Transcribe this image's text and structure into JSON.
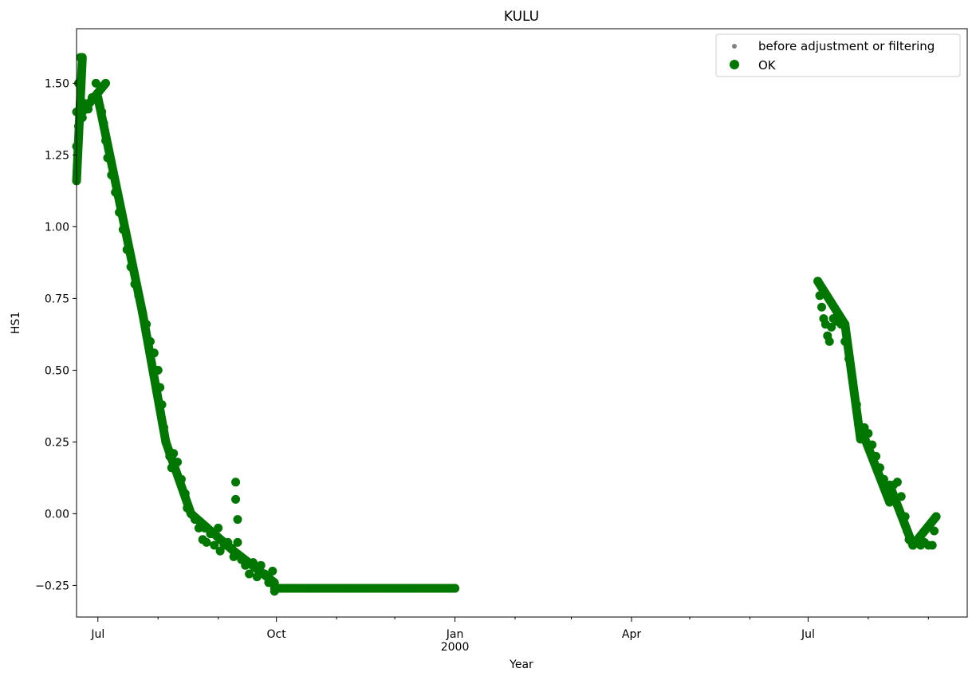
{
  "chart_data": {
    "type": "scatter",
    "title": "KULU",
    "xlabel": "Year",
    "ylabel": "HS1",
    "x_range": [
      "1999-06-20",
      "2000-09-21"
    ],
    "ylim": [
      -0.36,
      1.69
    ],
    "y_ticks": [
      -0.25,
      0.0,
      0.25,
      0.5,
      0.75,
      1.0,
      1.25,
      1.5
    ],
    "y_tick_labels": [
      "−0.25",
      "0.00",
      "0.25",
      "0.50",
      "0.75",
      "1.00",
      "1.25",
      "1.50"
    ],
    "x_major_ticks": [
      {
        "date": "1999-07-01",
        "label": "Jul",
        "sublabel": ""
      },
      {
        "date": "1999-10-01",
        "label": "Oct",
        "sublabel": ""
      },
      {
        "date": "2000-01-01",
        "label": "Jan",
        "sublabel": "2000"
      },
      {
        "date": "2000-04-01",
        "label": "Apr",
        "sublabel": ""
      },
      {
        "date": "2000-07-01",
        "label": "Jul",
        "sublabel": ""
      }
    ],
    "x_minor_ticks": [
      "1999-08-01",
      "1999-09-01",
      "1999-11-01",
      "1999-12-01",
      "2000-02-01",
      "2000-03-01",
      "2000-05-01",
      "2000-06-01",
      "2000-08-01",
      "2000-09-01"
    ],
    "grid": false,
    "legend_position": "top-right",
    "series": [
      {
        "name": "before adjustment or filtering",
        "color": "#808080",
        "marker": "small-dot",
        "points": []
      },
      {
        "name": "OK",
        "color": "#007700",
        "marker": "dot",
        "points": [
          [
            "1999-06-20",
            1.16
          ],
          [
            "1999-06-20",
            1.28
          ],
          [
            "1999-06-20",
            1.4
          ],
          [
            "1999-06-21",
            1.5
          ],
          [
            "1999-06-21",
            1.35
          ],
          [
            "1999-06-22",
            1.59
          ],
          [
            "1999-06-22",
            1.45
          ],
          [
            "1999-06-23",
            1.38
          ],
          [
            "1999-06-24",
            1.43
          ],
          [
            "1999-06-26",
            1.41
          ],
          [
            "1999-06-28",
            1.45
          ],
          [
            "1999-06-30",
            1.5
          ],
          [
            "1999-07-01",
            1.45
          ],
          [
            "1999-07-02",
            1.42
          ],
          [
            "1999-07-03",
            1.4
          ],
          [
            "1999-07-04",
            1.36
          ],
          [
            "1999-07-05",
            1.3
          ],
          [
            "1999-07-06",
            1.24
          ],
          [
            "1999-07-08",
            1.18
          ],
          [
            "1999-07-10",
            1.12
          ],
          [
            "1999-07-12",
            1.05
          ],
          [
            "1999-07-14",
            0.99
          ],
          [
            "1999-07-16",
            0.92
          ],
          [
            "1999-07-18",
            0.86
          ],
          [
            "1999-07-20",
            0.8
          ],
          [
            "1999-07-22",
            0.76
          ],
          [
            "1999-07-24",
            0.7
          ],
          [
            "1999-07-26",
            0.66
          ],
          [
            "1999-07-28",
            0.6
          ],
          [
            "1999-07-30",
            0.56
          ],
          [
            "1999-08-01",
            0.5
          ],
          [
            "1999-08-02",
            0.44
          ],
          [
            "1999-08-03",
            0.38
          ],
          [
            "1999-08-04",
            0.3
          ],
          [
            "1999-08-05",
            0.25
          ],
          [
            "1999-08-07",
            0.2
          ],
          [
            "1999-08-08",
            0.16
          ],
          [
            "1999-08-09",
            0.21
          ],
          [
            "1999-08-11",
            0.18
          ],
          [
            "1999-08-13",
            0.12
          ],
          [
            "1999-08-15",
            0.07
          ],
          [
            "1999-08-16",
            0.02
          ],
          [
            "1999-08-18",
            0.0
          ],
          [
            "1999-08-20",
            -0.02
          ],
          [
            "1999-08-22",
            -0.05
          ],
          [
            "1999-08-24",
            -0.09
          ],
          [
            "1999-08-25",
            -0.05
          ],
          [
            "1999-08-26",
            -0.1
          ],
          [
            "1999-08-28",
            -0.07
          ],
          [
            "1999-08-30",
            -0.11
          ],
          [
            "1999-09-01",
            -0.05
          ],
          [
            "1999-09-02",
            -0.13
          ],
          [
            "1999-09-04",
            -0.11
          ],
          [
            "1999-09-06",
            -0.1
          ],
          [
            "1999-09-08",
            -0.12
          ],
          [
            "1999-09-09",
            -0.15
          ],
          [
            "1999-09-10",
            0.11
          ],
          [
            "1999-09-10",
            0.05
          ],
          [
            "1999-09-11",
            -0.02
          ],
          [
            "1999-09-11",
            -0.1
          ],
          [
            "1999-09-13",
            -0.16
          ],
          [
            "1999-09-15",
            -0.18
          ],
          [
            "1999-09-17",
            -0.21
          ],
          [
            "1999-09-19",
            -0.17
          ],
          [
            "1999-09-21",
            -0.22
          ],
          [
            "1999-09-23",
            -0.18
          ],
          [
            "1999-09-25",
            -0.21
          ],
          [
            "1999-09-27",
            -0.24
          ],
          [
            "1999-09-29",
            -0.2
          ],
          [
            "1999-09-30",
            -0.27
          ],
          [
            "1999-10-01",
            -0.26
          ],
          [
            "1999-10-10",
            -0.26
          ],
          [
            "1999-10-20",
            -0.26
          ],
          [
            "1999-10-31",
            -0.26
          ],
          [
            "1999-11-10",
            -0.26
          ],
          [
            "1999-11-20",
            -0.26
          ],
          [
            "1999-11-30",
            -0.26
          ],
          [
            "1999-12-10",
            -0.26
          ],
          [
            "1999-12-20",
            -0.26
          ],
          [
            "2000-01-01",
            -0.26
          ],
          [
            "2000-07-06",
            0.81
          ],
          [
            "2000-07-07",
            0.76
          ],
          [
            "2000-07-08",
            0.72
          ],
          [
            "2000-07-09",
            0.68
          ],
          [
            "2000-07-10",
            0.66
          ],
          [
            "2000-07-11",
            0.62
          ],
          [
            "2000-07-12",
            0.6
          ],
          [
            "2000-07-13",
            0.65
          ],
          [
            "2000-07-14",
            0.68
          ],
          [
            "2000-07-16",
            0.67
          ],
          [
            "2000-07-18",
            0.66
          ],
          [
            "2000-07-20",
            0.6
          ],
          [
            "2000-07-22",
            0.54
          ],
          [
            "2000-07-24",
            0.46
          ],
          [
            "2000-07-26",
            0.38
          ],
          [
            "2000-07-27",
            0.31
          ],
          [
            "2000-07-28",
            0.26
          ],
          [
            "2000-07-30",
            0.3
          ],
          [
            "2000-08-01",
            0.28
          ],
          [
            "2000-08-03",
            0.24
          ],
          [
            "2000-08-05",
            0.2
          ],
          [
            "2000-08-07",
            0.16
          ],
          [
            "2000-08-09",
            0.12
          ],
          [
            "2000-08-11",
            0.06
          ],
          [
            "2000-08-12",
            0.04
          ],
          [
            "2000-08-14",
            0.1
          ],
          [
            "2000-08-16",
            0.11
          ],
          [
            "2000-08-18",
            0.06
          ],
          [
            "2000-08-20",
            -0.01
          ],
          [
            "2000-08-21",
            -0.06
          ],
          [
            "2000-08-22",
            -0.09
          ],
          [
            "2000-08-24",
            -0.11
          ],
          [
            "2000-08-26",
            -0.1
          ],
          [
            "2000-08-28",
            -0.11
          ],
          [
            "2000-08-30",
            -0.1
          ],
          [
            "2000-09-01",
            -0.11
          ],
          [
            "2000-09-03",
            -0.11
          ],
          [
            "2000-09-04",
            -0.06
          ],
          [
            "2000-09-05",
            -0.01
          ]
        ],
        "segments": [
          {
            "from": [
              "1999-06-20",
              1.16
            ],
            "to": [
              "1999-06-23",
              1.59
            ]
          },
          {
            "from": [
              "1999-06-23",
              1.4
            ],
            "to": [
              "1999-07-05",
              1.5
            ]
          },
          {
            "from": [
              "1999-07-01",
              1.45
            ],
            "to": [
              "1999-07-24",
              0.7
            ]
          },
          {
            "from": [
              "1999-07-24",
              0.7
            ],
            "to": [
              "1999-08-05",
              0.25
            ]
          },
          {
            "from": [
              "1999-08-05",
              0.25
            ],
            "to": [
              "1999-08-18",
              0.0
            ]
          },
          {
            "from": [
              "1999-08-18",
              0.0
            ],
            "to": [
              "1999-09-09",
              -0.13
            ]
          },
          {
            "from": [
              "1999-09-09",
              -0.13
            ],
            "to": [
              "1999-09-30",
              -0.24
            ]
          },
          {
            "from": [
              "1999-09-30",
              -0.26
            ],
            "to": [
              "2000-01-01",
              -0.26
            ]
          },
          {
            "from": [
              "2000-07-06",
              0.81
            ],
            "to": [
              "2000-07-20",
              0.66
            ]
          },
          {
            "from": [
              "2000-07-20",
              0.66
            ],
            "to": [
              "2000-07-28",
              0.26
            ]
          },
          {
            "from": [
              "2000-07-28",
              0.3
            ],
            "to": [
              "2000-08-12",
              0.04
            ]
          },
          {
            "from": [
              "2000-08-12",
              0.1
            ],
            "to": [
              "2000-08-24",
              -0.11
            ]
          },
          {
            "from": [
              "2000-08-24",
              -0.11
            ],
            "to": [
              "2000-09-05",
              -0.01
            ]
          }
        ]
      }
    ]
  }
}
